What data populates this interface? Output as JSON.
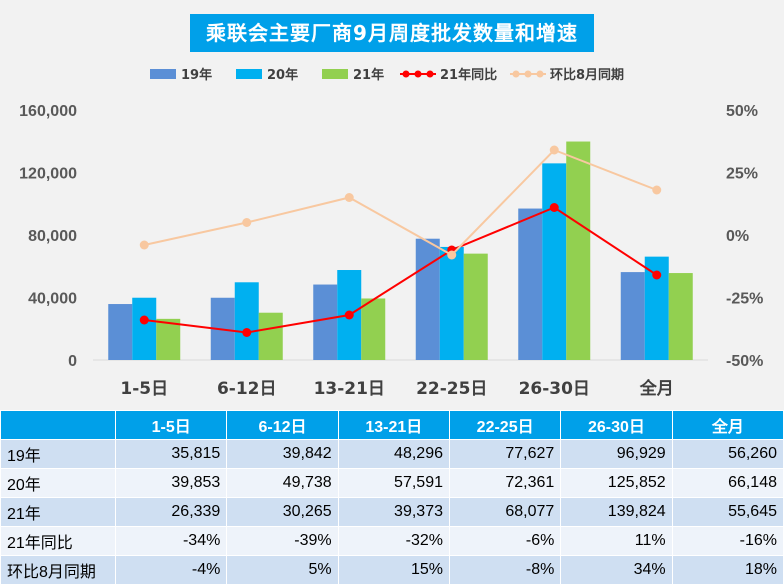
{
  "chart_data": {
    "type": "bar",
    "title": "乘联会主要厂商9月周度批发数量和增速",
    "categories": [
      "1-5日",
      "6-12日",
      "13-21日",
      "22-25日",
      "26-30日",
      "全月"
    ],
    "series": [
      {
        "name": "19年",
        "kind": "bar",
        "axis": "left",
        "color": "#5b8fd6",
        "values": [
          35815,
          39842,
          48296,
          77627,
          96929,
          56260
        ]
      },
      {
        "name": "20年",
        "kind": "bar",
        "axis": "left",
        "color": "#00b0f0",
        "values": [
          39853,
          49738,
          57591,
          72361,
          125852,
          66148
        ]
      },
      {
        "name": "21年",
        "kind": "bar",
        "axis": "left",
        "color": "#92d050",
        "values": [
          26339,
          30265,
          39373,
          68077,
          139824,
          55645
        ]
      },
      {
        "name": "21年同比",
        "kind": "line",
        "axis": "right",
        "color": "#ff0000",
        "values": [
          -34,
          -39,
          -32,
          -6,
          11,
          -16
        ]
      },
      {
        "name": "环比8月同期",
        "kind": "line",
        "axis": "right",
        "color": "#f8c8a0",
        "values": [
          -4,
          5,
          15,
          -8,
          34,
          18
        ]
      }
    ],
    "y_left": {
      "min": 0,
      "max": 160000,
      "ticks": [
        "0",
        "40,000",
        "80,000",
        "120,000",
        "160,000"
      ],
      "tick_values": [
        0,
        40000,
        80000,
        120000,
        160000
      ]
    },
    "y_right": {
      "min": -50,
      "max": 50,
      "ticks": [
        "-50%",
        "-25%",
        "0%",
        "25%",
        "50%"
      ],
      "tick_values": [
        -50,
        -25,
        0,
        25,
        50
      ]
    },
    "legend_position": "top"
  },
  "table": {
    "header": [
      "1-5日",
      "6-12日",
      "13-21日",
      "22-25日",
      "26-30日",
      "全月"
    ],
    "rows": [
      {
        "label": "19年",
        "cells": [
          "35,815",
          "39,842",
          "48,296",
          "77,627",
          "96,929",
          "56,260"
        ]
      },
      {
        "label": "20年",
        "cells": [
          "39,853",
          "49,738",
          "57,591",
          "72,361",
          "125,852",
          "66,148"
        ]
      },
      {
        "label": "21年",
        "cells": [
          "26,339",
          "30,265",
          "39,373",
          "68,077",
          "139,824",
          "55,645"
        ]
      },
      {
        "label": "21年同比",
        "cells": [
          "-34%",
          "-39%",
          "-32%",
          "-6%",
          "11%",
          "-16%"
        ]
      },
      {
        "label": "环比8月同期",
        "cells": [
          "-4%",
          "5%",
          "15%",
          "-8%",
          "34%",
          "18%"
        ]
      }
    ]
  }
}
